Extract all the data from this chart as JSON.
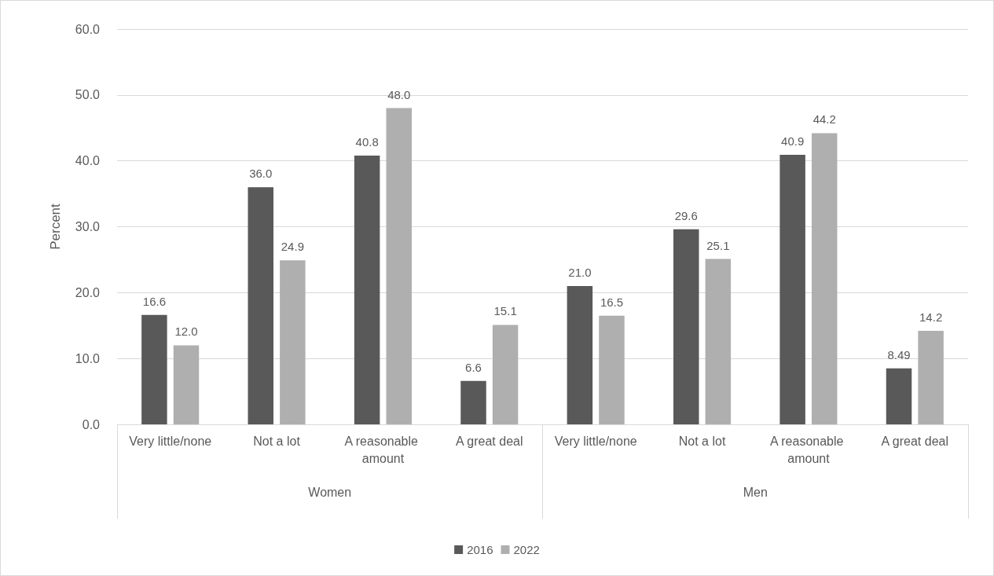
{
  "chart_data": {
    "type": "bar",
    "ylabel": "Percent",
    "categories": [
      "Very little/none",
      "Not a lot",
      "A reasonable amount",
      "A great deal",
      "Very little/none",
      "Not a lot",
      "A reasonable amount",
      "A great deal"
    ],
    "annotations": [
      "Women",
      "Men"
    ],
    "series": [
      {
        "name": "2016",
        "color": "#595959",
        "values": [
          16.6,
          36.0,
          40.8,
          6.6,
          21.0,
          29.6,
          40.9,
          8.49
        ],
        "value_labels": [
          "16.6",
          "36.0",
          "40.8",
          "6.6",
          "21.0",
          "29.6",
          "40.9",
          "8.49"
        ]
      },
      {
        "name": "2022",
        "color": "#afafaf",
        "values": [
          12.0,
          24.9,
          48.0,
          15.1,
          16.5,
          25.1,
          44.2,
          14.2
        ],
        "value_labels": [
          "12.0",
          "24.9",
          "48.0",
          "15.1",
          "16.5",
          "25.1",
          "44.2",
          "14.2"
        ]
      }
    ],
    "ylim": [
      0,
      60
    ],
    "yticks": [
      {
        "value": 0,
        "label": "0.0"
      },
      {
        "value": 10,
        "label": "10.0"
      },
      {
        "value": 20,
        "label": "20.0"
      },
      {
        "value": 30,
        "label": "30.0"
      },
      {
        "value": 40,
        "label": "40.0"
      },
      {
        "value": 50,
        "label": "50.0"
      },
      {
        "value": 60,
        "label": "60.0"
      }
    ],
    "grid": "y",
    "legend": "bottom"
  }
}
